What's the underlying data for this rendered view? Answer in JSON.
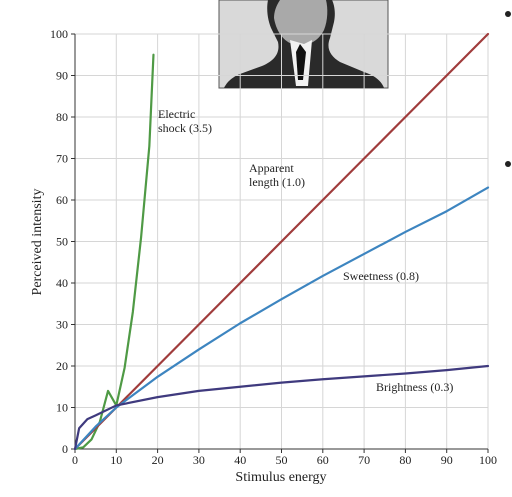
{
  "chart_data": {
    "type": "line",
    "xlabel": "Stimulus energy",
    "ylabel": "Perceived intensity",
    "xlim": [
      0,
      100
    ],
    "ylim": [
      0,
      100
    ],
    "xticks": [
      0,
      10,
      20,
      30,
      40,
      50,
      60,
      70,
      80,
      90,
      100
    ],
    "yticks": [
      0,
      10,
      20,
      30,
      40,
      50,
      60,
      70,
      80,
      90,
      100
    ],
    "grid": true,
    "series": [
      {
        "key": "electric",
        "label_lines": [
          "Electric",
          "shock (3.5)"
        ],
        "color": "#4f9a45",
        "exponent": 3.5,
        "points": [
          [
            0,
            0
          ],
          [
            2,
            0.4
          ],
          [
            4,
            2.3
          ],
          [
            6,
            6.5
          ],
          [
            8,
            14
          ],
          [
            10,
            10.5
          ],
          [
            12,
            19.5
          ],
          [
            14,
            33
          ],
          [
            16,
            51
          ],
          [
            18,
            73
          ],
          [
            19,
            95
          ]
        ]
      },
      {
        "key": "length",
        "label_lines": [
          "Apparent",
          "length (1.0)"
        ],
        "color": "#a03c3c",
        "exponent": 1.0,
        "points": [
          [
            0,
            0
          ],
          [
            10,
            10
          ],
          [
            20,
            20
          ],
          [
            30,
            30
          ],
          [
            40,
            40
          ],
          [
            50,
            50
          ],
          [
            60,
            60
          ],
          [
            70,
            70
          ],
          [
            80,
            80
          ],
          [
            90,
            90
          ],
          [
            100,
            100
          ]
        ]
      },
      {
        "key": "sweetness",
        "label_lines": [
          "Sweetness (0.8)"
        ],
        "color": "#3d85c0",
        "exponent": 0.8,
        "points": [
          [
            0,
            0
          ],
          [
            5,
            5.4
          ],
          [
            10,
            10
          ],
          [
            20,
            17.4
          ],
          [
            30,
            24
          ],
          [
            40,
            30.3
          ],
          [
            50,
            36.1
          ],
          [
            60,
            41.7
          ],
          [
            70,
            47
          ],
          [
            80,
            52.3
          ],
          [
            90,
            57.3
          ],
          [
            100,
            63
          ]
        ]
      },
      {
        "key": "brightness",
        "label_lines": [
          "Brightness (0.3)"
        ],
        "color": "#3f3a7e",
        "exponent": 0.3,
        "points": [
          [
            0,
            0
          ],
          [
            1,
            5
          ],
          [
            3,
            7.2
          ],
          [
            5,
            8.1
          ],
          [
            10,
            10.5
          ],
          [
            20,
            12.5
          ],
          [
            30,
            14
          ],
          [
            40,
            15
          ],
          [
            50,
            16
          ],
          [
            60,
            16.8
          ],
          [
            70,
            17.5
          ],
          [
            80,
            18.2
          ],
          [
            90,
            19
          ],
          [
            100,
            20
          ]
        ]
      }
    ]
  }
}
